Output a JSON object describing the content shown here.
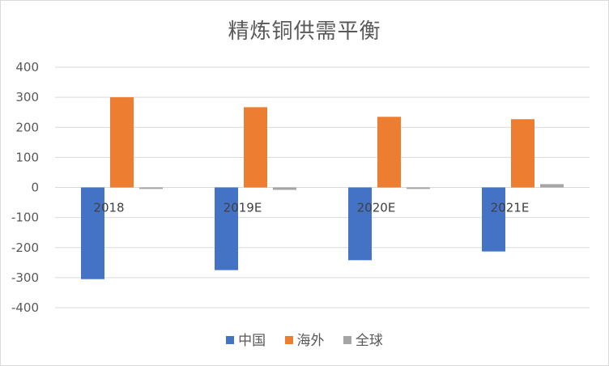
{
  "chart_data": {
    "type": "bar",
    "title": "精炼铜供需平衡",
    "categories": [
      "2018",
      "2019E",
      "2020E",
      "2021E"
    ],
    "series": [
      {
        "name": "中国",
        "color": "#4472c4",
        "values": [
          -305,
          -275,
          -242,
          -213
        ]
      },
      {
        "name": "海外",
        "color": "#ed7d31",
        "values": [
          300,
          267,
          235,
          227
        ]
      },
      {
        "name": "全球",
        "color": "#a5a5a5",
        "values": [
          -5,
          -8,
          -5,
          11
        ]
      }
    ],
    "yticks": [
      "400",
      "300",
      "200",
      "100",
      "0",
      "-100",
      "-200",
      "-300",
      "-400"
    ],
    "ylim": [
      -400,
      400
    ],
    "grid": true,
    "legend_position": "bottom"
  }
}
